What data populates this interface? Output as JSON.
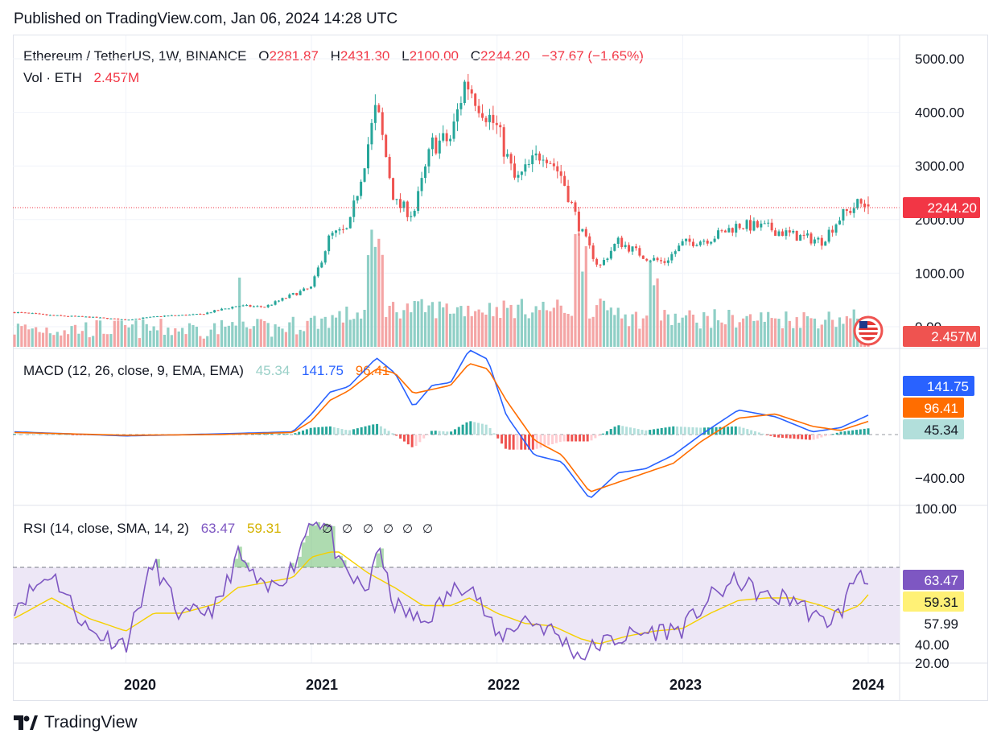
{
  "published": "Published on TradingView.com, Jan 06, 2024 14:28 UTC",
  "brand": "TradingView",
  "colors": {
    "up": "#26a69a",
    "down": "#ef5350",
    "vol_up": "#8fcfc6",
    "vol_down": "#f4a5a5",
    "macd": "#2962ff",
    "signal": "#ff6d00",
    "rsi": "#7e57c2",
    "rsi_ma": "#f5d000",
    "rsi_band": "#ede7f6",
    "hist_up": "#26a69a",
    "hist_down": "#ef5350",
    "hist_up_light": "#b2dfdb",
    "hist_down_light": "#ffcdd2"
  },
  "price_pane": {
    "symbol": "Ethereum / TetherUS, 1W, BINANCE",
    "open_label": "O",
    "open": "2281.87",
    "high_label": "H",
    "high": "2431.30",
    "low_label": "L",
    "low": "2100.00",
    "close_label": "C",
    "close": "2244.20",
    "change": "−37.67 (−1.65%)",
    "vol_label": "Vol · ETH",
    "vol_value": "2.457M",
    "last_price_badge": "2244.20",
    "vol_badge": "2.457M",
    "y_ticks": [
      "5000.00",
      "4000.00",
      "3000.00",
      "2000.00",
      "1000.00",
      "0.00"
    ]
  },
  "macd_pane": {
    "label": "MACD (12, 26, close, 9, EMA, EMA)",
    "hist_value": "45.34",
    "macd_value": "141.75",
    "signal_value": "96.41",
    "y_ticks": [
      "−400.00"
    ],
    "badges": [
      "141.75",
      "96.41",
      "45.34"
    ]
  },
  "rsi_pane": {
    "label": "RSI (14, close, SMA, 14, 2)",
    "rsi_value": "63.47",
    "ma_value": "59.31",
    "divergence_markers": [
      "∅",
      "∅",
      "∅",
      "∅",
      "∅",
      "∅",
      "∅"
    ],
    "y_ticks": [
      "100.00",
      "40.00",
      "20.00"
    ],
    "badges": [
      "63.47",
      "59.31",
      "57.99"
    ]
  },
  "x_axis": {
    "labels": [
      "2020",
      "2021",
      "2022",
      "2023",
      "2024"
    ]
  },
  "chart_data": [
    {
      "type": "line",
      "title": "Ethereum / TetherUS, 1W, BINANCE",
      "x": [
        2019.4,
        2019.6,
        2019.8,
        2020.0,
        2020.2,
        2020.4,
        2020.6,
        2020.75,
        2020.9,
        2021.0,
        2021.1,
        2021.2,
        2021.35,
        2021.45,
        2021.55,
        2021.65,
        2021.75,
        2021.83,
        2021.9,
        2022.0,
        2022.1,
        2022.25,
        2022.35,
        2022.45,
        2022.55,
        2022.65,
        2022.8,
        2022.9,
        2023.0,
        2023.15,
        2023.3,
        2023.45,
        2023.6,
        2023.75,
        2023.85,
        2023.95,
        2024.0
      ],
      "series": [
        {
          "values": [
            270,
            210,
            180,
            130,
            200,
            230,
            390,
            370,
            600,
            730,
            1700,
            1800,
            4100,
            2300,
            2100,
            3400,
            3500,
            4600,
            4200,
            3700,
            2700,
            3300,
            2800,
            1800,
            1100,
            1600,
            1300,
            1200,
            1550,
            1650,
            1900,
            1850,
            1700,
            1600,
            2050,
            2300,
            2244
          ]
        }
      ],
      "ylim": [
        0,
        5200
      ]
    },
    {
      "type": "line",
      "title": "MACD (12, 26, close, 9, EMA, EMA)",
      "x": [
        2019.4,
        2020.0,
        2020.5,
        2020.9,
        2021.0,
        2021.1,
        2021.2,
        2021.35,
        2021.45,
        2021.55,
        2021.65,
        2021.75,
        2021.85,
        2021.95,
        2022.05,
        2022.2,
        2022.35,
        2022.5,
        2022.65,
        2022.8,
        2022.95,
        2023.1,
        2023.3,
        2023.5,
        2023.7,
        2023.85,
        2024.0
      ],
      "series": [
        {
          "values": [
            20,
            -10,
            5,
            20,
            150,
            310,
            350,
            560,
            450,
            200,
            360,
            380,
            620,
            550,
            140,
            -150,
            -200,
            -470,
            -280,
            -250,
            -150,
            0,
            180,
            130,
            20,
            50,
            141.75
          ]
        },
        {
          "values": [
            15,
            -5,
            0,
            15,
            100,
            250,
            320,
            480,
            450,
            300,
            330,
            360,
            520,
            480,
            250,
            -40,
            -150,
            -420,
            -350,
            -280,
            -210,
            -50,
            120,
            150,
            60,
            30,
            96.41
          ]
        }
      ],
      "ylim": [
        -500,
        700
      ]
    },
    {
      "type": "line",
      "title": "RSI (14, close, SMA, 14, 2)",
      "x": [
        2019.4,
        2019.6,
        2019.8,
        2020.0,
        2020.15,
        2020.3,
        2020.5,
        2020.6,
        2020.75,
        2020.9,
        2021.0,
        2021.1,
        2021.15,
        2021.3,
        2021.35,
        2021.45,
        2021.6,
        2021.75,
        2021.85,
        2022.0,
        2022.15,
        2022.3,
        2022.45,
        2022.55,
        2022.7,
        2022.85,
        2023.0,
        2023.15,
        2023.3,
        2023.45,
        2023.6,
        2023.75,
        2023.85,
        2023.95,
        2024.0
      ],
      "series": [
        {
          "values": [
            55,
            68,
            45,
            40,
            72,
            50,
            55,
            75,
            60,
            70,
            90,
            85,
            70,
            60,
            78,
            55,
            48,
            60,
            65,
            42,
            50,
            45,
            35,
            40,
            43,
            45,
            46,
            58,
            65,
            58,
            58,
            48,
            52,
            70,
            63.47
          ]
        },
        {
          "values": [
            50,
            58,
            50,
            45,
            52,
            52,
            56,
            62,
            64,
            66,
            74,
            76,
            76,
            68,
            66,
            62,
            55,
            55,
            58,
            52,
            48,
            47,
            42,
            40,
            43,
            45,
            46,
            52,
            57,
            58,
            58,
            55,
            52,
            55,
            59.31
          ]
        }
      ],
      "ylim": [
        20,
        100
      ]
    }
  ]
}
